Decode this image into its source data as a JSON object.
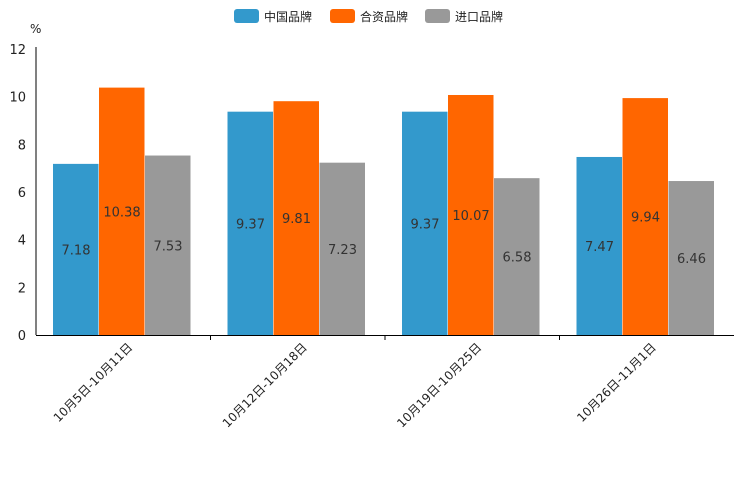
{
  "chart_data": {
    "type": "bar",
    "unit": "%",
    "categories": [
      "10月5日-10月11日",
      "10月12日-10月18日",
      "10月19日-10月25日",
      "10月26日-11月1日"
    ],
    "series": [
      {
        "name": "中国品牌",
        "color": "#3399cc",
        "values": [
          7.18,
          9.37,
          9.37,
          7.47
        ],
        "labels": [
          "7.18",
          "9.37",
          "9.37",
          "7.47"
        ]
      },
      {
        "name": "合资品牌",
        "color": "#ff6600",
        "values": [
          10.38,
          9.81,
          10.07,
          9.94
        ],
        "labels": [
          "10.38",
          "9.81",
          "10.07",
          "9.94"
        ]
      },
      {
        "name": "进口品牌",
        "color": "#999999",
        "values": [
          7.53,
          7.23,
          6.58,
          6.46
        ],
        "labels": [
          "7.53",
          "7.23",
          "6.58",
          "6.46"
        ]
      }
    ],
    "ylim": [
      0,
      12
    ],
    "yticks": [
      "0",
      "2",
      "4",
      "6",
      "8",
      "10",
      "12"
    ],
    "legend_position": "top-center",
    "grid": false
  }
}
